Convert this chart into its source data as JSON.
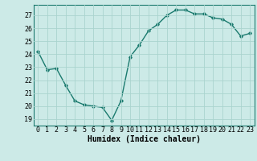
{
  "x": [
    0,
    1,
    2,
    3,
    4,
    5,
    6,
    7,
    8,
    9,
    10,
    11,
    12,
    13,
    14,
    15,
    16,
    17,
    18,
    19,
    20,
    21,
    22,
    23
  ],
  "y": [
    24.2,
    22.8,
    22.9,
    21.6,
    20.4,
    20.1,
    20.0,
    19.9,
    18.9,
    20.4,
    23.8,
    24.7,
    25.8,
    26.3,
    27.0,
    27.4,
    27.4,
    27.1,
    27.1,
    26.8,
    26.7,
    26.3,
    25.4,
    25.6
  ],
  "line_color": "#1a7a6e",
  "marker": "D",
  "marker_size": 1.8,
  "bg_color": "#cceae7",
  "grid_color": "#aad4cf",
  "xlabel": "Humidex (Indice chaleur)",
  "ylim": [
    18.5,
    27.8
  ],
  "yticks": [
    19,
    20,
    21,
    22,
    23,
    24,
    25,
    26,
    27
  ],
  "xticks": [
    0,
    1,
    2,
    3,
    4,
    5,
    6,
    7,
    8,
    9,
    10,
    11,
    12,
    13,
    14,
    15,
    16,
    17,
    18,
    19,
    20,
    21,
    22,
    23
  ],
  "xlabel_fontsize": 7.0,
  "tick_fontsize": 6.0,
  "linewidth": 1.0,
  "xlim": [
    -0.5,
    23.5
  ]
}
